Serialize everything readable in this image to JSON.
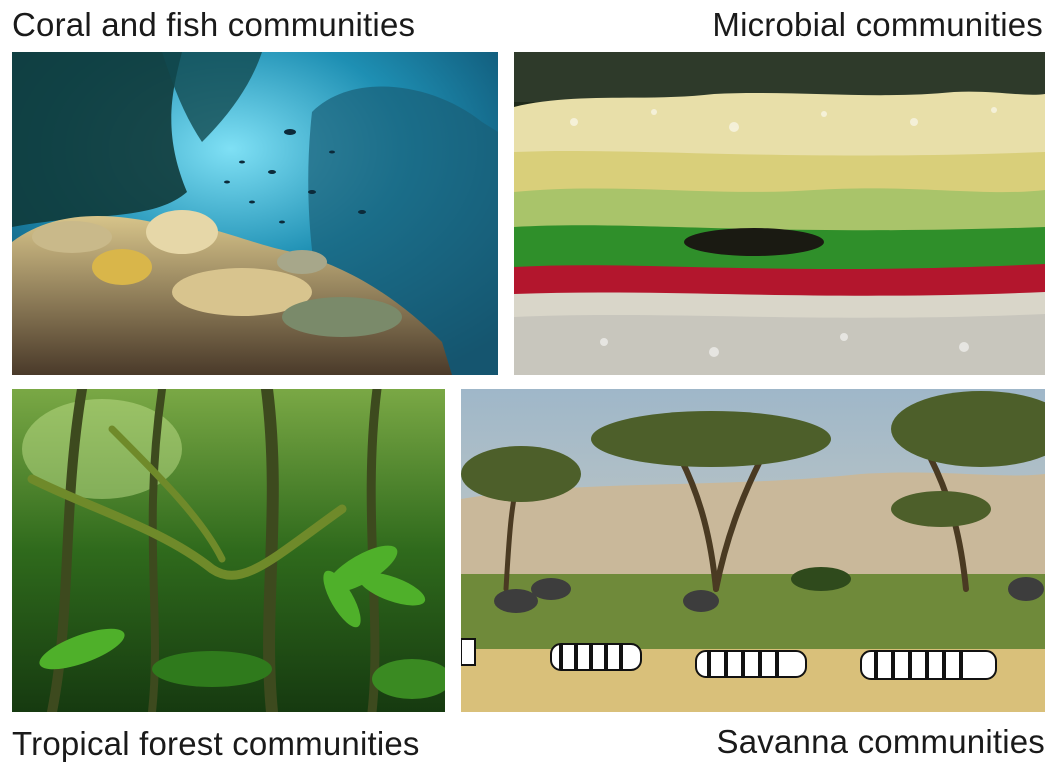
{
  "captions": {
    "coral": "Coral and fish communities",
    "microbial": "Microbial communities",
    "forest": "Tropical forest communities",
    "savanna": "Savanna communities"
  },
  "colors": {
    "coral_water": "#1e8fb3",
    "microbial_red": "#b3162d",
    "microbial_green": "#2f8f2a",
    "forest_green": "#2f6a1c",
    "savanna_grass": "#d9c07a"
  }
}
